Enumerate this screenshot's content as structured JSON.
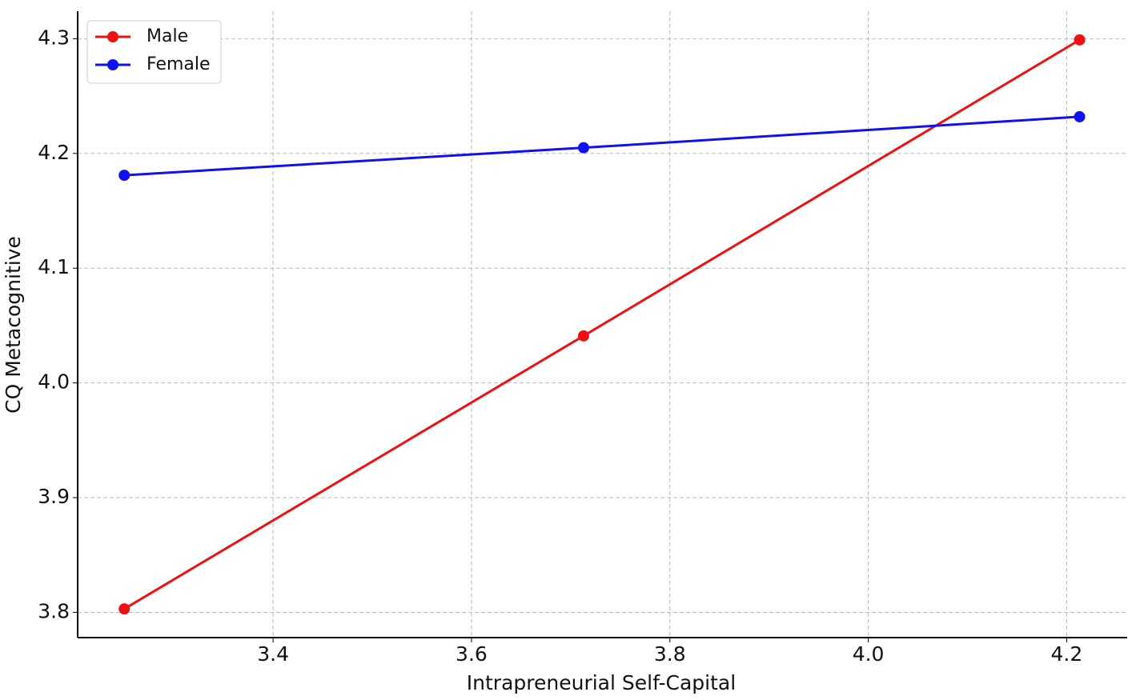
{
  "chart_data": {
    "type": "line",
    "x_label": "Intrapreneurial Self-Capital",
    "y_label": "CQ Metacognitive",
    "x": [
      3.25,
      3.713,
      4.213
    ],
    "series": [
      {
        "name": "Male",
        "color": "#ee1111",
        "values": [
          3.803,
          4.041,
          4.299
        ]
      },
      {
        "name": "Female",
        "color": "#1111ee",
        "values": [
          4.181,
          4.205,
          4.232
        ]
      }
    ],
    "xlim": [
      3.203,
      4.261
    ],
    "ylim": [
      3.778,
      4.324
    ],
    "xticks": [
      3.4,
      3.6,
      3.8,
      {
        "value": 4,
        "label": "4.0"
      },
      4.2
    ],
    "yticks": [
      3.8,
      3.9,
      {
        "value": 4,
        "label": "4.0"
      },
      4.1,
      4.2,
      4.3
    ],
    "grid": true,
    "legend": "upper-left"
  }
}
